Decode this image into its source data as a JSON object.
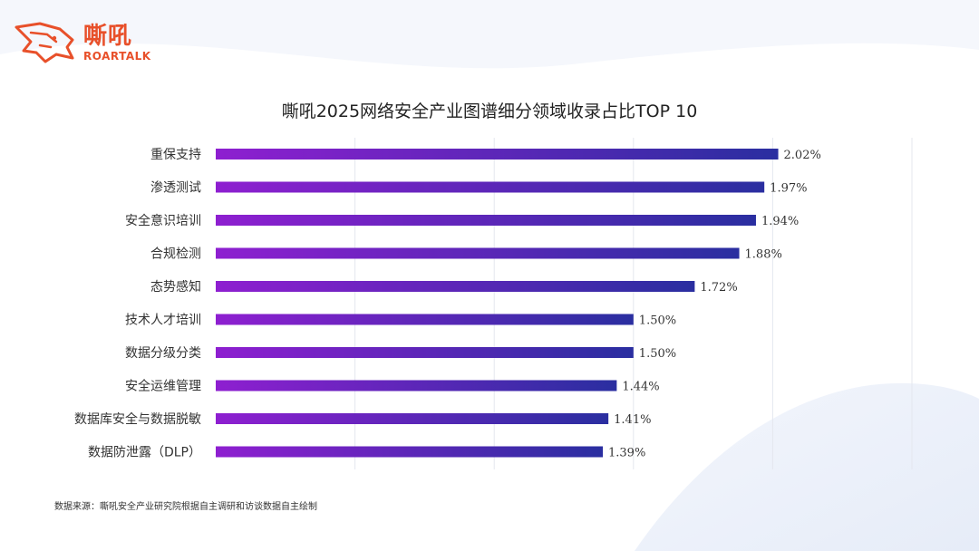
{
  "brand": {
    "name_cn": "嘶吼",
    "name_en": "ROARTALK",
    "color": "#e8502a"
  },
  "chart_data": {
    "type": "bar",
    "orientation": "horizontal",
    "title": "嘶吼2025网络安全产业图谱细分领域收录占比TOP 10",
    "categories": [
      "重保支持",
      "渗透测试",
      "安全意识培训",
      "合规检测",
      "态势感知",
      "技术人才培训",
      "数据分级分类",
      "安全运维管理",
      "数据库安全与数据脱敏",
      "数据防泄露（DLP）"
    ],
    "values": [
      2.02,
      1.97,
      1.94,
      1.88,
      1.72,
      1.5,
      1.5,
      1.44,
      1.41,
      1.39
    ],
    "value_labels": [
      "2.02%",
      "1.97%",
      "1.94%",
      "1.88%",
      "1.72%",
      "1.50%",
      "1.50%",
      "1.44%",
      "1.41%",
      "1.39%"
    ],
    "unit": "%",
    "xlim": [
      0,
      2.5
    ],
    "grid": true,
    "bar_gradient": [
      "#8e1fd0",
      "#2a2ea0"
    ]
  },
  "source_note": "数据来源：嘶吼安全产业研究院根据自主调研和访谈数据自主绘制"
}
